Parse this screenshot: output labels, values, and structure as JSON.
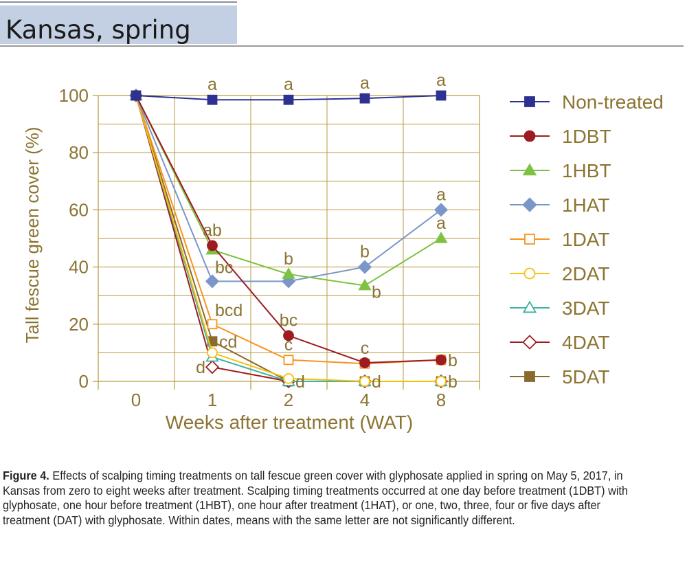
{
  "header": {
    "title": "Kansas, spring"
  },
  "caption": {
    "label": "Figure 4.",
    "text": " Effects of scalping timing treatments on tall fescue green cover with glyphosate applied in spring on May 5, 2017, in Kansas from zero to eight weeks after treatment. Scalping timing treatments occurred at one day before treatment (1DBT) with glyphosate, one hour before treatment (1HBT), one hour after treatment (1HAT), or one, two, three, four or five days after treatment (DAT) with glyphosate. Within dates, means with the same letter are not significantly different."
  },
  "colors": {
    "axis_text": "#8c7432",
    "grid": "#b49a3c"
  },
  "chart_data": {
    "type": "line",
    "title": "",
    "xlabel": "Weeks after treatment (WAT)",
    "ylabel": "Tall fescue green cover (%)",
    "categories": [
      "0",
      "1",
      "2",
      "4",
      "8"
    ],
    "ylim": [
      0,
      100
    ],
    "yticks": [
      0,
      20,
      40,
      60,
      80,
      100
    ],
    "grid": true,
    "legend_position": "right",
    "series": [
      {
        "name": "Non-treated",
        "values": [
          100,
          98.5,
          98.5,
          99,
          100
        ],
        "color": "#2e3192",
        "marker": "square-filled"
      },
      {
        "name": "1DBT",
        "values": [
          100,
          47.5,
          16,
          6.5,
          7.5
        ],
        "color": "#9e1b20",
        "marker": "circle-filled"
      },
      {
        "name": "1HBT",
        "values": [
          100,
          46,
          37.5,
          33.5,
          50
        ],
        "color": "#7dc241",
        "marker": "triangle-filled"
      },
      {
        "name": "1HAT",
        "values": [
          100,
          35,
          35,
          40,
          60
        ],
        "color": "#7b96c8",
        "marker": "diamond-filled"
      },
      {
        "name": "1DAT",
        "values": [
          100,
          20,
          7.5,
          6.2,
          7.5
        ],
        "color": "#f7941d",
        "marker": "square-open"
      },
      {
        "name": "2DAT",
        "values": [
          100,
          10,
          1,
          0,
          0
        ],
        "color": "#f5c00e",
        "marker": "circle-open"
      },
      {
        "name": "3DAT",
        "values": [
          100,
          8.5,
          0,
          0,
          0
        ],
        "color": "#3eb2a6",
        "marker": "triangle-open"
      },
      {
        "name": "4DAT",
        "values": [
          100,
          5,
          0,
          0,
          0
        ],
        "color": "#9e1b20",
        "marker": "diamond-open"
      },
      {
        "name": "5DAT",
        "values": [
          100,
          14,
          0,
          0,
          0
        ],
        "color": "#8b6a2d",
        "marker": "square-filled"
      }
    ],
    "annotations": [
      {
        "text": "a",
        "x": "1",
        "y": 98.5,
        "pos": "above"
      },
      {
        "text": "a",
        "x": "2",
        "y": 98.5,
        "pos": "above"
      },
      {
        "text": "a",
        "x": "4",
        "y": 99,
        "pos": "above"
      },
      {
        "text": "a",
        "x": "8",
        "y": 100,
        "pos": "above"
      },
      {
        "text": "ab",
        "x": "1",
        "y": 47.5,
        "pos": "above"
      },
      {
        "text": "bc",
        "x": "1",
        "y": 35,
        "pos": "above-right"
      },
      {
        "text": "bcd",
        "x": "1",
        "y": 20,
        "pos": "above-right"
      },
      {
        "text": "cd",
        "x": "1",
        "y": 14,
        "pos": "right"
      },
      {
        "text": "d",
        "x": "1",
        "y": 5,
        "pos": "left"
      },
      {
        "text": "b",
        "x": "2",
        "y": 37.5,
        "pos": "above"
      },
      {
        "text": "bc",
        "x": "2",
        "y": 16,
        "pos": "above"
      },
      {
        "text": "c",
        "x": "2",
        "y": 7.5,
        "pos": "above"
      },
      {
        "text": "d",
        "x": "2",
        "y": 0,
        "pos": "right"
      },
      {
        "text": "b",
        "x": "4",
        "y": 40,
        "pos": "above"
      },
      {
        "text": "b",
        "x": "4",
        "y": 33.5,
        "pos": "below-right"
      },
      {
        "text": "c",
        "x": "4",
        "y": 6.2,
        "pos": "above"
      },
      {
        "text": "d",
        "x": "4",
        "y": 0,
        "pos": "right"
      },
      {
        "text": "a",
        "x": "8",
        "y": 60,
        "pos": "above"
      },
      {
        "text": "a",
        "x": "8",
        "y": 50,
        "pos": "above"
      },
      {
        "text": "b",
        "x": "8",
        "y": 7.5,
        "pos": "right"
      },
      {
        "text": "b",
        "x": "8",
        "y": 0,
        "pos": "right"
      }
    ]
  }
}
